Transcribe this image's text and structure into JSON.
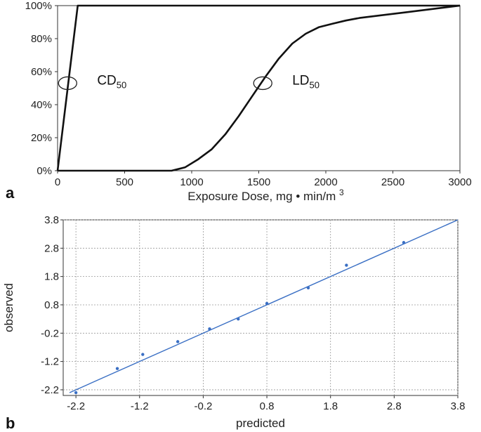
{
  "chart_data": [
    {
      "type": "line",
      "panel_label": "a",
      "xlabel_main": "Exposure Dose, mg",
      "xlabel_bullet": "•",
      "xlabel_unit": "min/m",
      "xlabel_unit_sup": "3",
      "ylabel": "",
      "xlim": [
        0,
        3000
      ],
      "ylim": [
        0,
        100
      ],
      "x_ticks": [
        0,
        500,
        1000,
        1500,
        2000,
        2500,
        3000
      ],
      "y_ticks": [
        0,
        20,
        40,
        60,
        80,
        100
      ],
      "y_tick_labels": [
        "0%",
        "20%",
        "40%",
        "60%",
        "80%",
        "100%"
      ],
      "grid": false,
      "series": [
        {
          "label_main": "CD",
          "label_sub": "50",
          "x": [
            0,
            150,
            3000
          ],
          "y": [
            0,
            100,
            100
          ]
        },
        {
          "label_main": "LD",
          "label_sub": "50",
          "x": [
            0,
            850,
            950,
            1050,
            1150,
            1250,
            1350,
            1450,
            1550,
            1650,
            1750,
            1850,
            1950,
            2050,
            2150,
            2250,
            2400,
            2600,
            2800,
            3000
          ],
          "y": [
            0,
            0,
            2,
            7,
            13,
            22,
            33,
            45,
            57,
            68,
            77,
            83,
            87,
            89,
            91,
            92.5,
            94,
            96,
            98,
            100
          ]
        }
      ],
      "annotations": [
        {
          "text_main": "CD",
          "text_sub": "50",
          "x": 75,
          "y": 53
        },
        {
          "text_main": "LD",
          "text_sub": "50",
          "x": 1530,
          "y": 53
        }
      ]
    },
    {
      "type": "scatter",
      "panel_label": "b",
      "xlabel": "predicted",
      "ylabel": "observed",
      "xlim": [
        -2.4,
        3.8
      ],
      "ylim": [
        -2.4,
        3.8
      ],
      "x_ticks": [
        -2.2,
        -1.2,
        -0.2,
        0.8,
        1.8,
        2.8,
        3.8
      ],
      "x_tick_labels": [
        "-2.2",
        "-1.2",
        "-0.2",
        "0.8",
        "1.8",
        "2.8",
        "3.8"
      ],
      "y_ticks": [
        -2.2,
        -1.2,
        -0.2,
        0.8,
        1.8,
        2.8,
        3.8
      ],
      "y_tick_labels": [
        "-2.2",
        "-1.2",
        "-0.2",
        "0.8",
        "1.8",
        "2.8",
        "3.8"
      ],
      "grid": true,
      "points": {
        "x": [
          -2.2,
          -1.55,
          -1.15,
          -0.6,
          -0.1,
          0.35,
          0.8,
          1.45,
          2.05,
          2.95
        ],
        "y": [
          -2.3,
          -1.45,
          -0.95,
          -0.5,
          -0.05,
          0.3,
          0.85,
          1.4,
          2.2,
          3.0
        ]
      },
      "fit_line": {
        "x": [
          -2.3,
          3.8
        ],
        "y": [
          -2.3,
          3.8
        ]
      },
      "point_color": "#3a6fc4",
      "line_color": "#3a6fc4"
    }
  ]
}
